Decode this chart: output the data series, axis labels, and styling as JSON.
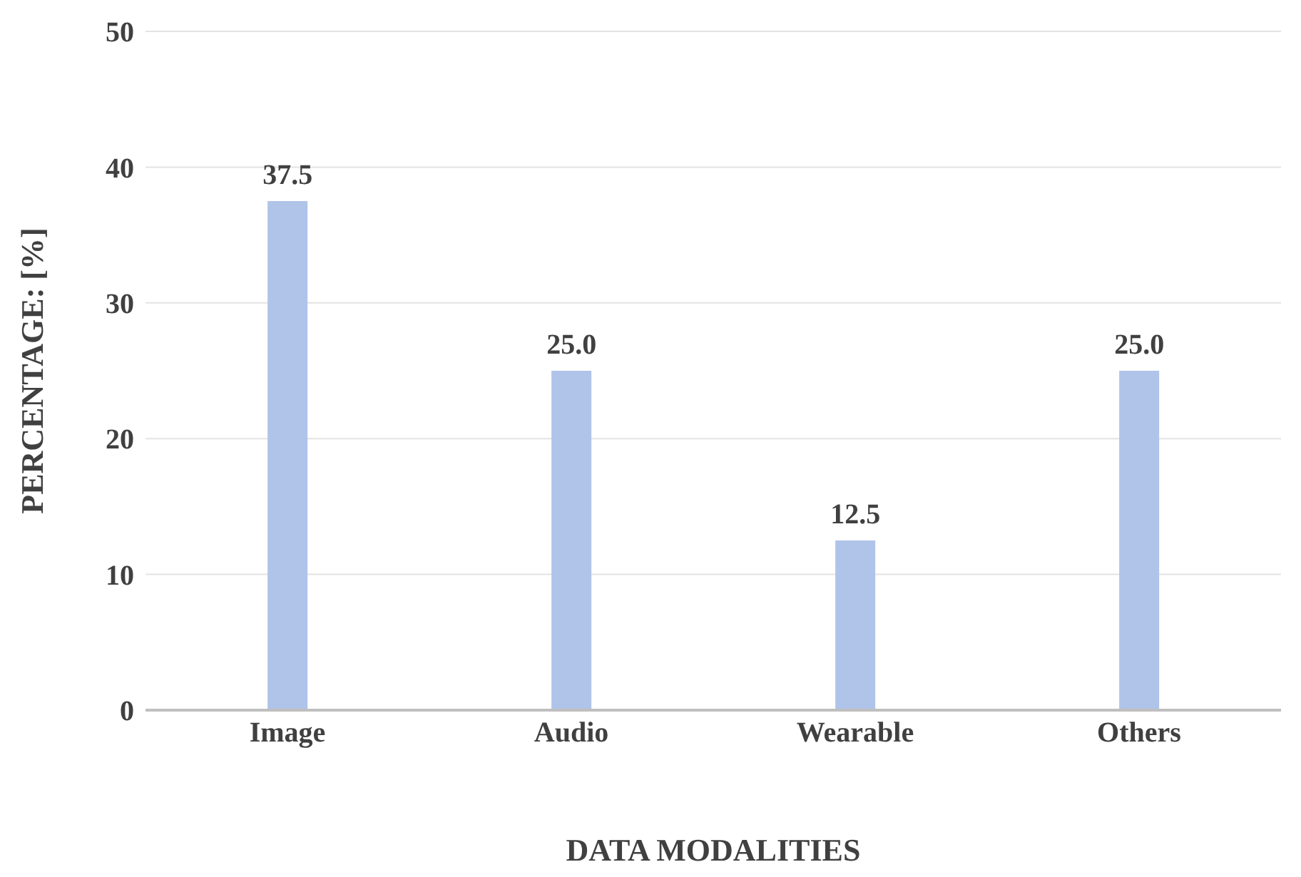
{
  "chart_data": {
    "type": "bar",
    "xlabel": "DATA MODALITIES",
    "ylabel": "PERCENTAGE: [%]",
    "categories": [
      "Image",
      "Audio",
      "Wearable",
      "Others"
    ],
    "values": [
      37.5,
      25.0,
      12.5,
      25.0
    ],
    "value_labels": [
      "37.5",
      "25.0",
      "12.5",
      "25.0"
    ],
    "color": "#b0c3e8",
    "ylim": [
      0,
      50
    ],
    "yticks": [
      0,
      10,
      20,
      30,
      40,
      50
    ],
    "grid": "y"
  }
}
